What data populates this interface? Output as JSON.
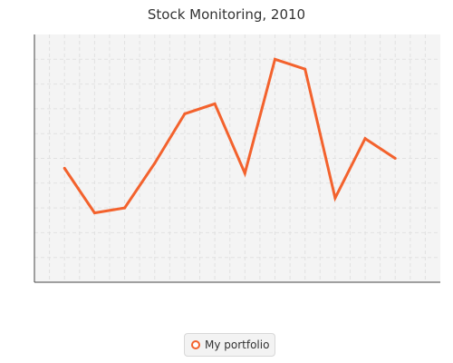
{
  "chart_data": {
    "type": "line",
    "title": "Stock Monitoring, 2010",
    "xlabel": "",
    "ylabel": "",
    "x": [
      1,
      2,
      3,
      4,
      5,
      6,
      7,
      8,
      9,
      10,
      11,
      12
    ],
    "xlim": [
      0,
      13.5
    ],
    "ylim": [
      0,
      50
    ],
    "grid": true,
    "axis_tick_labels_shown": false,
    "series": [
      {
        "name": "My portfolio",
        "values": [
          23,
          14,
          15,
          24,
          34,
          36,
          22,
          45,
          43,
          17,
          29,
          25
        ],
        "color": "#f3622d"
      }
    ],
    "legend": {
      "position": "bottom-center",
      "entries": [
        "My portfolio"
      ]
    }
  },
  "colors": {
    "plot_background": "#f4f4f4",
    "grid": "#e1e1e1",
    "axis": "#444444",
    "series": "#f3622d"
  }
}
